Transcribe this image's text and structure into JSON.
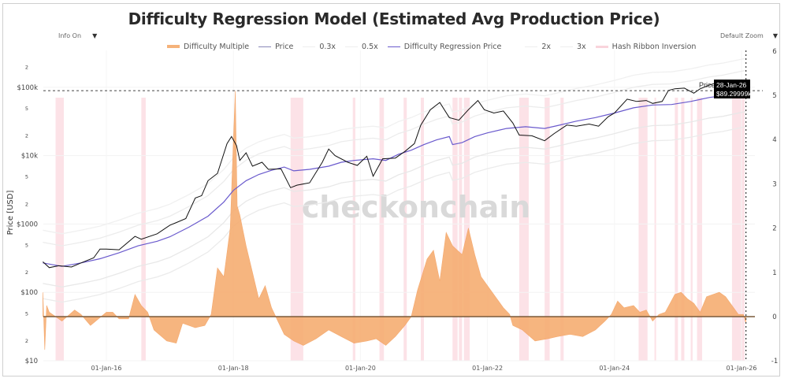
{
  "header": {
    "title": "Difficulty Regression Model (Estimated Avg Production Price)",
    "info_control": "Info On",
    "zoom_control": "Default Zoom",
    "dropdown_arrow": "▼"
  },
  "legend": [
    {
      "label": "Difficulty Multiple",
      "color": "#f5a86b",
      "kind": "area"
    },
    {
      "label": "Price",
      "color": "#1a1a1a",
      "kind": "line"
    },
    {
      "label": "0.3x",
      "color": "#e6e6e6",
      "kind": "line"
    },
    {
      "label": "0.5x",
      "color": "#ececec",
      "kind": "line"
    },
    {
      "label": "Difficulty Regression Price",
      "color": "#6a5acd",
      "kind": "line"
    },
    {
      "label": "2x",
      "color": "#eeeeee",
      "kind": "line"
    },
    {
      "label": "3x",
      "color": "#f0f0f0",
      "kind": "line"
    },
    {
      "label": "Hash Ribbon Inversion",
      "color": "#f9d4dc",
      "kind": "band"
    }
  ],
  "watermark": "checkonchain",
  "tooltip": {
    "series": "Price",
    "date": "28-Jan-26",
    "value": "$89.29999k"
  },
  "chart_data": {
    "type": "line",
    "title": "Difficulty Regression Model (Estimated Avg Production Price)",
    "xlabel": "",
    "ylabel": "Price [USD]",
    "y_scale": "log",
    "ylim": [
      10,
      600000
    ],
    "y2lim": [
      -1,
      6
    ],
    "x_range": [
      "2015-01-01",
      "2026-02-15"
    ],
    "x_ticks": [
      "01-Jan-16",
      "01-Jan-18",
      "01-Jan-20",
      "01-Jan-22",
      "01-Jan-24",
      "01-Jan-26"
    ],
    "y_ticks": [
      "$10",
      "2",
      "5",
      "$100",
      "2",
      "5",
      "$1000",
      "2",
      "5",
      "$10k",
      "2",
      "5",
      "$100k",
      "2"
    ],
    "y2_ticks": [
      "-1",
      "0",
      "1",
      "2",
      "3",
      "4",
      "5",
      "6"
    ],
    "reference_line_price": 89300,
    "grid": true,
    "legend_position": "top",
    "series": [
      {
        "name": "Price",
        "axis": "left",
        "points": [
          [
            2015.0,
            280
          ],
          [
            2015.1,
            230
          ],
          [
            2015.25,
            245
          ],
          [
            2015.45,
            235
          ],
          [
            2015.6,
            270
          ],
          [
            2015.8,
            320
          ],
          [
            2015.9,
            430
          ],
          [
            2016.0,
            430
          ],
          [
            2016.2,
            420
          ],
          [
            2016.45,
            660
          ],
          [
            2016.55,
            600
          ],
          [
            2016.8,
            720
          ],
          [
            2017.0,
            960
          ],
          [
            2017.1,
            1050
          ],
          [
            2017.25,
            1200
          ],
          [
            2017.4,
            2400
          ],
          [
            2017.5,
            2600
          ],
          [
            2017.6,
            4300
          ],
          [
            2017.75,
            5500
          ],
          [
            2017.9,
            15000
          ],
          [
            2017.97,
            19000
          ],
          [
            2018.05,
            14000
          ],
          [
            2018.1,
            8500
          ],
          [
            2018.2,
            11000
          ],
          [
            2018.3,
            7000
          ],
          [
            2018.45,
            8000
          ],
          [
            2018.55,
            6300
          ],
          [
            2018.75,
            6400
          ],
          [
            2018.9,
            3400
          ],
          [
            2019.0,
            3700
          ],
          [
            2019.2,
            4000
          ],
          [
            2019.4,
            8000
          ],
          [
            2019.5,
            12500
          ],
          [
            2019.6,
            10000
          ],
          [
            2019.8,
            8000
          ],
          [
            2019.95,
            7200
          ],
          [
            2020.1,
            9800
          ],
          [
            2020.2,
            5000
          ],
          [
            2020.35,
            9000
          ],
          [
            2020.55,
            9200
          ],
          [
            2020.7,
            11500
          ],
          [
            2020.85,
            15000
          ],
          [
            2020.95,
            28000
          ],
          [
            2021.1,
            47000
          ],
          [
            2021.25,
            60000
          ],
          [
            2021.4,
            36000
          ],
          [
            2021.55,
            33000
          ],
          [
            2021.7,
            47000
          ],
          [
            2021.85,
            64000
          ],
          [
            2021.95,
            47000
          ],
          [
            2022.1,
            42000
          ],
          [
            2022.25,
            45000
          ],
          [
            2022.4,
            30000
          ],
          [
            2022.5,
            20000
          ],
          [
            2022.7,
            19500
          ],
          [
            2022.9,
            16500
          ],
          [
            2023.05,
            21000
          ],
          [
            2023.25,
            28000
          ],
          [
            2023.4,
            27000
          ],
          [
            2023.6,
            29000
          ],
          [
            2023.75,
            27000
          ],
          [
            2023.9,
            37000
          ],
          [
            2024.0,
            42000
          ],
          [
            2024.2,
            67000
          ],
          [
            2024.35,
            62000
          ],
          [
            2024.5,
            64000
          ],
          [
            2024.6,
            58000
          ],
          [
            2024.75,
            62000
          ],
          [
            2024.85,
            90000
          ],
          [
            2024.95,
            95000
          ],
          [
            2025.1,
            97000
          ],
          [
            2025.25,
            82000
          ],
          [
            2025.35,
            95000
          ],
          [
            2025.5,
            108000
          ],
          [
            2025.6,
            116000
          ],
          [
            2025.75,
            112000
          ],
          [
            2025.85,
            105000
          ],
          [
            2025.95,
            87000
          ],
          [
            2026.0,
            92000
          ],
          [
            2026.07,
            89300
          ]
        ]
      },
      {
        "name": "Difficulty Regression Price",
        "axis": "left",
        "points": [
          [
            2015.0,
            270
          ],
          [
            2015.3,
            240
          ],
          [
            2015.6,
            270
          ],
          [
            2015.9,
            310
          ],
          [
            2016.2,
            380
          ],
          [
            2016.5,
            480
          ],
          [
            2016.8,
            560
          ],
          [
            2017.0,
            650
          ],
          [
            2017.3,
            900
          ],
          [
            2017.6,
            1300
          ],
          [
            2017.85,
            2100
          ],
          [
            2018.0,
            3100
          ],
          [
            2018.2,
            4300
          ],
          [
            2018.4,
            5300
          ],
          [
            2018.6,
            6100
          ],
          [
            2018.8,
            6800
          ],
          [
            2018.95,
            6000
          ],
          [
            2019.2,
            6300
          ],
          [
            2019.5,
            7000
          ],
          [
            2019.7,
            8000
          ],
          [
            2019.9,
            8500
          ],
          [
            2020.2,
            9000
          ],
          [
            2020.4,
            8500
          ],
          [
            2020.6,
            10500
          ],
          [
            2020.8,
            12000
          ],
          [
            2021.0,
            14500
          ],
          [
            2021.2,
            17000
          ],
          [
            2021.4,
            19000
          ],
          [
            2021.45,
            14500
          ],
          [
            2021.6,
            15500
          ],
          [
            2021.8,
            19000
          ],
          [
            2022.0,
            21500
          ],
          [
            2022.3,
            25000
          ],
          [
            2022.6,
            26500
          ],
          [
            2022.9,
            25000
          ],
          [
            2023.1,
            27500
          ],
          [
            2023.4,
            32000
          ],
          [
            2023.7,
            36000
          ],
          [
            2024.0,
            42000
          ],
          [
            2024.3,
            50000
          ],
          [
            2024.6,
            55000
          ],
          [
            2024.9,
            56000
          ],
          [
            2025.2,
            62000
          ],
          [
            2025.5,
            71000
          ],
          [
            2025.7,
            75000
          ]
        ]
      }
    ],
    "bands": [
      {
        "name": "0.3x",
        "factor": 0.3
      },
      {
        "name": "0.5x",
        "factor": 0.5
      },
      {
        "name": "2x",
        "factor": 2
      },
      {
        "name": "3x",
        "factor": 3
      }
    ],
    "difficulty_multiple": {
      "axis": "right",
      "points": [
        [
          2015.0,
          0.55
        ],
        [
          2015.03,
          -0.75
        ],
        [
          2015.06,
          0.25
        ],
        [
          2015.1,
          0.1
        ],
        [
          2015.3,
          -0.1
        ],
        [
          2015.5,
          0.15
        ],
        [
          2015.6,
          0.05
        ],
        [
          2015.75,
          -0.2
        ],
        [
          2016.0,
          0.1
        ],
        [
          2016.1,
          0.1
        ],
        [
          2016.2,
          -0.05
        ],
        [
          2016.35,
          -0.05
        ],
        [
          2016.45,
          0.5
        ],
        [
          2016.55,
          0.25
        ],
        [
          2016.65,
          0.1
        ],
        [
          2016.75,
          -0.3
        ],
        [
          2016.95,
          -0.55
        ],
        [
          2017.1,
          -0.6
        ],
        [
          2017.2,
          -0.15
        ],
        [
          2017.4,
          -0.25
        ],
        [
          2017.55,
          -0.2
        ],
        [
          2017.65,
          0.05
        ],
        [
          2017.75,
          1.1
        ],
        [
          2017.85,
          0.9
        ],
        [
          2017.95,
          2.0
        ],
        [
          2018.0,
          4.0
        ],
        [
          2018.03,
          5.1
        ],
        [
          2018.06,
          2.5
        ],
        [
          2018.1,
          2.3
        ],
        [
          2018.2,
          1.6
        ],
        [
          2018.3,
          1.0
        ],
        [
          2018.4,
          0.4
        ],
        [
          2018.5,
          0.7
        ],
        [
          2018.6,
          0.2
        ],
        [
          2018.7,
          -0.1
        ],
        [
          2018.8,
          -0.4
        ],
        [
          2018.95,
          -0.55
        ],
        [
          2019.1,
          -0.65
        ],
        [
          2019.3,
          -0.5
        ],
        [
          2019.5,
          -0.3
        ],
        [
          2019.7,
          -0.45
        ],
        [
          2019.9,
          -0.6
        ],
        [
          2020.1,
          -0.55
        ],
        [
          2020.25,
          -0.5
        ],
        [
          2020.4,
          -0.65
        ],
        [
          2020.55,
          -0.45
        ],
        [
          2020.7,
          -0.2
        ],
        [
          2020.8,
          0.0
        ],
        [
          2020.9,
          0.6
        ],
        [
          2021.05,
          1.3
        ],
        [
          2021.15,
          1.5
        ],
        [
          2021.25,
          0.8
        ],
        [
          2021.35,
          1.9
        ],
        [
          2021.45,
          1.6
        ],
        [
          2021.6,
          1.4
        ],
        [
          2021.7,
          2.0
        ],
        [
          2021.8,
          1.4
        ],
        [
          2021.9,
          0.9
        ],
        [
          2022.05,
          0.6
        ],
        [
          2022.15,
          0.4
        ],
        [
          2022.25,
          0.2
        ],
        [
          2022.35,
          0.05
        ],
        [
          2022.4,
          -0.2
        ],
        [
          2022.55,
          -0.3
        ],
        [
          2022.75,
          -0.55
        ],
        [
          2022.95,
          -0.5
        ],
        [
          2023.1,
          -0.45
        ],
        [
          2023.3,
          -0.4
        ],
        [
          2023.5,
          -0.45
        ],
        [
          2023.7,
          -0.3
        ],
        [
          2023.85,
          -0.1
        ],
        [
          2023.95,
          0.05
        ],
        [
          2024.05,
          0.35
        ],
        [
          2024.15,
          0.2
        ],
        [
          2024.3,
          0.25
        ],
        [
          2024.4,
          0.1
        ],
        [
          2024.5,
          0.15
        ],
        [
          2024.6,
          -0.1
        ],
        [
          2024.7,
          0.05
        ],
        [
          2024.8,
          0.1
        ],
        [
          2024.95,
          0.5
        ],
        [
          2025.05,
          0.55
        ],
        [
          2025.15,
          0.4
        ],
        [
          2025.25,
          0.3
        ],
        [
          2025.35,
          0.1
        ],
        [
          2025.45,
          0.45
        ],
        [
          2025.55,
          0.5
        ],
        [
          2025.65,
          0.55
        ],
        [
          2025.75,
          0.45
        ],
        [
          2025.85,
          0.25
        ],
        [
          2025.95,
          0.05
        ],
        [
          2026.03,
          0.05
        ],
        [
          2026.07,
          -0.15
        ]
      ]
    },
    "hash_ribbon_inversions": [
      [
        2015.2,
        2015.33
      ],
      [
        2016.55,
        2016.62
      ],
      [
        2018.9,
        2019.1
      ],
      [
        2019.88,
        2019.92
      ],
      [
        2020.3,
        2020.37
      ],
      [
        2020.68,
        2020.73
      ],
      [
        2020.95,
        2021.0
      ],
      [
        2021.45,
        2021.53
      ],
      [
        2021.55,
        2021.6
      ],
      [
        2021.63,
        2021.72
      ],
      [
        2022.5,
        2022.65
      ],
      [
        2022.9,
        2022.98
      ],
      [
        2023.15,
        2023.2
      ],
      [
        2024.38,
        2024.52
      ],
      [
        2024.63,
        2024.65
      ],
      [
        2024.95,
        2025.0
      ],
      [
        2025.05,
        2025.1
      ],
      [
        2025.2,
        2025.23
      ],
      [
        2025.3,
        2025.38
      ],
      [
        2025.85,
        2026.05
      ]
    ]
  }
}
